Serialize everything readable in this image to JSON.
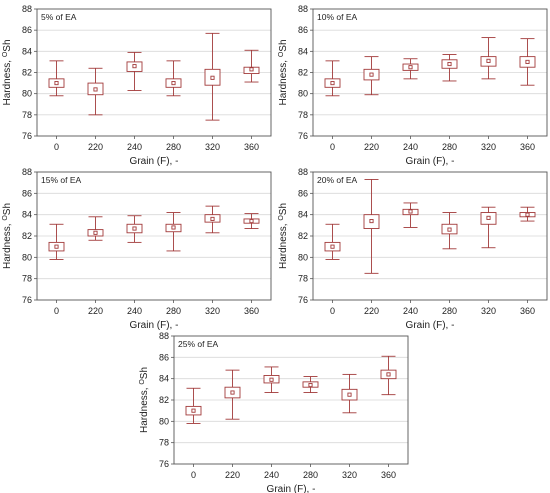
{
  "chart_data": [
    {
      "type": "boxplot",
      "title": "5% of EA",
      "xlabel": "Grain (F), -",
      "ylabel": "Hardness, °Sh",
      "ylabel_main": "Hardness, ",
      "ylabel_super": "O",
      "ylabel_unit": "Sh",
      "ylim": [
        76,
        88
      ],
      "yticks": [
        76,
        78,
        80,
        82,
        84,
        86,
        88
      ],
      "categories": [
        "0",
        "220",
        "240",
        "280",
        "320",
        "360"
      ],
      "mean": [
        81.0,
        80.4,
        82.6,
        81.0,
        81.5,
        82.3
      ],
      "box_low": [
        80.6,
        79.9,
        82.1,
        80.6,
        80.8,
        81.9
      ],
      "box_high": [
        81.4,
        81.0,
        83.0,
        81.4,
        82.3,
        82.5
      ],
      "whisker_low": [
        79.8,
        78.0,
        80.3,
        79.8,
        77.5,
        81.1
      ],
      "whisker_high": [
        83.1,
        82.4,
        83.9,
        83.1,
        85.7,
        84.1
      ]
    },
    {
      "type": "boxplot",
      "title": "10% of EA",
      "xlabel": "Grain (F), -",
      "ylabel": "Hardness, °Sh",
      "ylabel_main": "Hardness, ",
      "ylabel_super": "O",
      "ylabel_unit": "Sh",
      "ylim": [
        76,
        88
      ],
      "yticks": [
        76,
        78,
        80,
        82,
        84,
        86,
        88
      ],
      "categories": [
        "0",
        "220",
        "240",
        "280",
        "320",
        "360"
      ],
      "mean": [
        81.0,
        81.8,
        82.5,
        82.8,
        83.1,
        83.0
      ],
      "box_low": [
        80.6,
        81.3,
        82.2,
        82.4,
        82.6,
        82.5
      ],
      "box_high": [
        81.4,
        82.3,
        82.8,
        83.2,
        83.5,
        83.5
      ],
      "whisker_low": [
        79.8,
        79.9,
        81.4,
        81.2,
        81.4,
        80.8
      ],
      "whisker_high": [
        83.1,
        83.5,
        83.3,
        83.7,
        85.3,
        85.2
      ]
    },
    {
      "type": "boxplot",
      "title": "15% of EA",
      "xlabel": "Grain (F), -",
      "ylabel": "Hardness, °Sh",
      "ylabel_main": "Hardness, ",
      "ylabel_super": "O",
      "ylabel_unit": "Sh",
      "ylim": [
        76,
        88
      ],
      "yticks": [
        76,
        78,
        80,
        82,
        84,
        86,
        88
      ],
      "categories": [
        "0",
        "220",
        "240",
        "280",
        "320",
        "360"
      ],
      "mean": [
        81.0,
        82.3,
        82.7,
        82.8,
        83.6,
        83.4
      ],
      "box_low": [
        80.6,
        82.0,
        82.3,
        82.4,
        83.3,
        83.2
      ],
      "box_high": [
        81.4,
        82.6,
        83.1,
        83.1,
        84.0,
        83.6
      ],
      "whisker_low": [
        79.8,
        81.6,
        81.4,
        80.6,
        82.3,
        82.7
      ],
      "whisker_high": [
        83.1,
        83.8,
        83.9,
        84.2,
        84.8,
        84.1
      ]
    },
    {
      "type": "boxplot",
      "title": "20% of EA",
      "xlabel": "Grain (F), -",
      "ylabel": "Hardness, °Sh",
      "ylabel_main": "Hardness, ",
      "ylabel_super": "O",
      "ylabel_unit": "Sh",
      "ylim": [
        76,
        88
      ],
      "yticks": [
        76,
        78,
        80,
        82,
        84,
        86,
        88
      ],
      "categories": [
        "0",
        "220",
        "240",
        "280",
        "320",
        "360"
      ],
      "mean": [
        81.0,
        83.4,
        84.3,
        82.6,
        83.7,
        84.0
      ],
      "box_low": [
        80.6,
        82.7,
        84.0,
        82.2,
        83.1,
        83.8
      ],
      "box_high": [
        81.4,
        84.0,
        84.5,
        83.1,
        84.2,
        84.2
      ],
      "whisker_low": [
        79.8,
        78.5,
        82.8,
        80.8,
        80.9,
        83.4
      ],
      "whisker_high": [
        83.1,
        87.3,
        85.1,
        84.2,
        84.7,
        84.7
      ]
    },
    {
      "type": "boxplot",
      "title": "25% of EA",
      "xlabel": "Grain (F), -",
      "ylabel": "Hardness, °Sh",
      "ylabel_main": "Hardness, ",
      "ylabel_super": "O",
      "ylabel_unit": "Sh",
      "ylim": [
        76,
        88
      ],
      "yticks": [
        76,
        78,
        80,
        82,
        84,
        86,
        88
      ],
      "categories": [
        "0",
        "220",
        "240",
        "280",
        "320",
        "360"
      ],
      "mean": [
        81.0,
        82.7,
        83.9,
        83.4,
        82.5,
        84.4
      ],
      "box_low": [
        80.6,
        82.2,
        83.6,
        83.2,
        82.0,
        84.0
      ],
      "box_high": [
        81.4,
        83.2,
        84.3,
        83.7,
        83.0,
        84.8
      ],
      "whisker_low": [
        79.8,
        80.2,
        82.7,
        82.7,
        80.8,
        82.5
      ],
      "whisker_high": [
        83.1,
        84.8,
        85.1,
        84.2,
        84.4,
        86.1
      ]
    }
  ],
  "colors": {
    "box_stroke": "#a23a3a",
    "axis": "#555555",
    "grid": "#d9d9d9",
    "text": "#222222"
  }
}
